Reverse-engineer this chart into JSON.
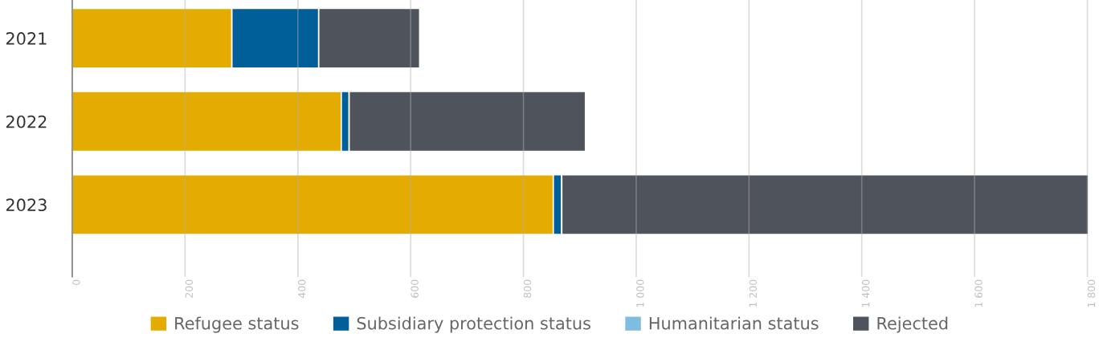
{
  "chart_data": {
    "type": "bar",
    "orientation": "horizontal",
    "stacked": true,
    "categories": [
      "2021",
      "2022",
      "2023"
    ],
    "series": [
      {
        "name": "Refugee status",
        "color": "#e4ac00",
        "values": [
          283,
          477,
          853
        ]
      },
      {
        "name": "Subsidiary protection status",
        "color": "#005e99",
        "values": [
          154,
          14,
          15
        ]
      },
      {
        "name": "Humanitarian status",
        "color": "#7ebde0",
        "values": [
          0,
          0,
          0
        ]
      },
      {
        "name": "Rejected",
        "color": "#4f535b",
        "values": [
          179,
          419,
          934
        ]
      }
    ],
    "xlim": [
      0,
      1805
    ],
    "xticks": [
      0,
      200,
      400,
      600,
      800,
      {
        "value": 1000,
        "label": "1 000"
      },
      {
        "value": 1200,
        "label": "1 200"
      },
      {
        "value": 1400,
        "label": "1 400"
      },
      {
        "value": 1600,
        "label": "1 600"
      },
      {
        "value": 1800,
        "label": "1 800"
      }
    ],
    "grid": "x",
    "legend": "bottom"
  }
}
